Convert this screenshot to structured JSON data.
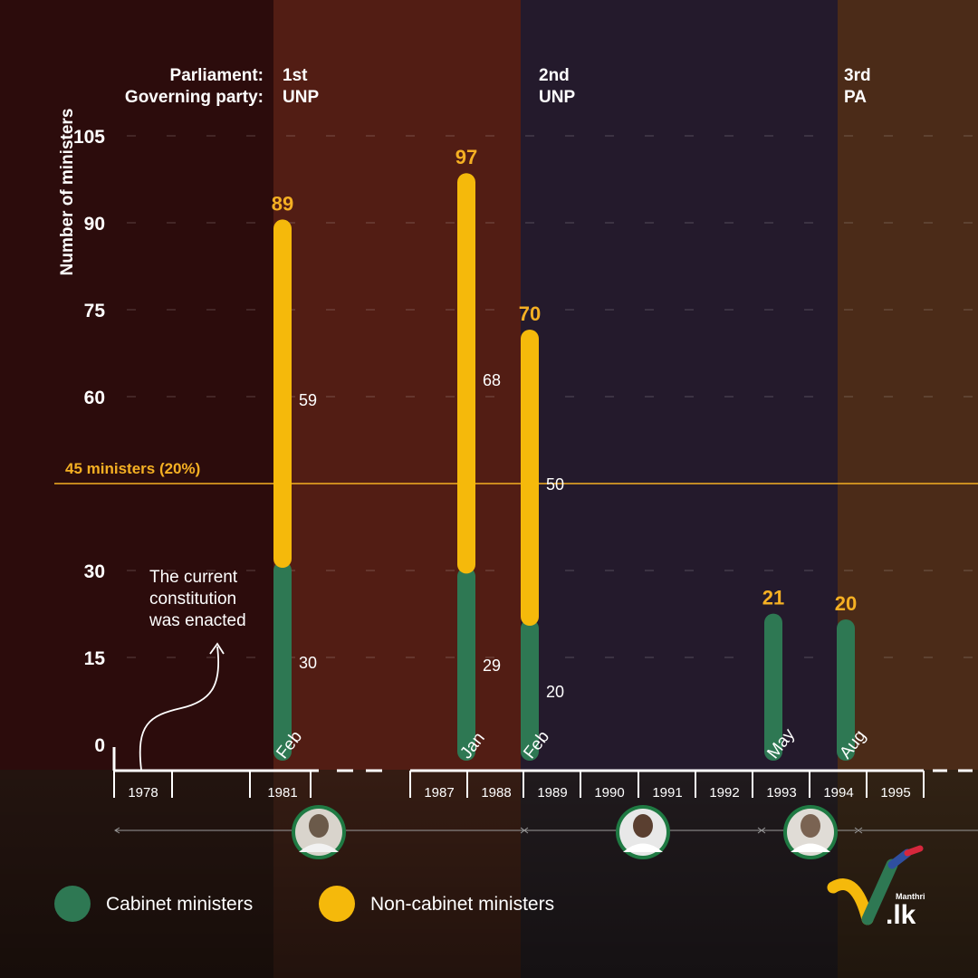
{
  "chart_data": {
    "type": "bar",
    "stacked": true,
    "ylabel": "Number of ministers",
    "yticks": [
      0,
      15,
      30,
      60,
      75,
      90,
      105
    ],
    "ylim": [
      0,
      105
    ],
    "grid": true,
    "reference_line": {
      "value": 45,
      "label": "45 ministers (20%)"
    },
    "header": {
      "row_labels": [
        "Parliament:",
        "Governing party:"
      ],
      "parliaments": [
        {
          "name": "1st",
          "party": "UNP"
        },
        {
          "name": "2nd",
          "party": "UNP"
        },
        {
          "name": "3rd",
          "party": "PA"
        }
      ]
    },
    "years": [
      "1978",
      "1981",
      "1987",
      "1988",
      "1989",
      "1990",
      "1991",
      "1992",
      "1993",
      "1994",
      "1995"
    ],
    "categories": [
      "Feb 1981",
      "Jan 1988",
      "Feb 1989",
      "May 1993",
      "Aug 1994"
    ],
    "month_labels": [
      "Feb",
      "Jan",
      "Feb",
      "May",
      "Aug"
    ],
    "series": [
      {
        "name": "Cabinet ministers",
        "color": "#2e7853",
        "values": [
          30,
          29,
          20,
          21,
          20
        ]
      },
      {
        "name": "Non-cabinet ministers",
        "color": "#f5b90b",
        "values": [
          59,
          68,
          50,
          0,
          0
        ]
      }
    ],
    "totals": [
      89,
      97,
      70,
      21,
      20
    ],
    "segment_labels": [
      {
        "cabinet": "30",
        "noncabinet": "59"
      },
      {
        "cabinet": "29",
        "noncabinet": "68"
      },
      {
        "cabinet": "20",
        "noncabinet": "50"
      },
      {
        "cabinet": "",
        "noncabinet": ""
      },
      {
        "cabinet": "",
        "noncabinet": ""
      }
    ],
    "annotation": {
      "lines": [
        "The current",
        "constitution",
        "was enacted"
      ]
    },
    "legend": [
      {
        "label": "Cabinet ministers",
        "color": "#2e7853"
      },
      {
        "label": "Non-cabinet ministers",
        "color": "#f5b90b"
      }
    ],
    "logo": {
      "small": "Manthri",
      "main": ".lk"
    }
  }
}
